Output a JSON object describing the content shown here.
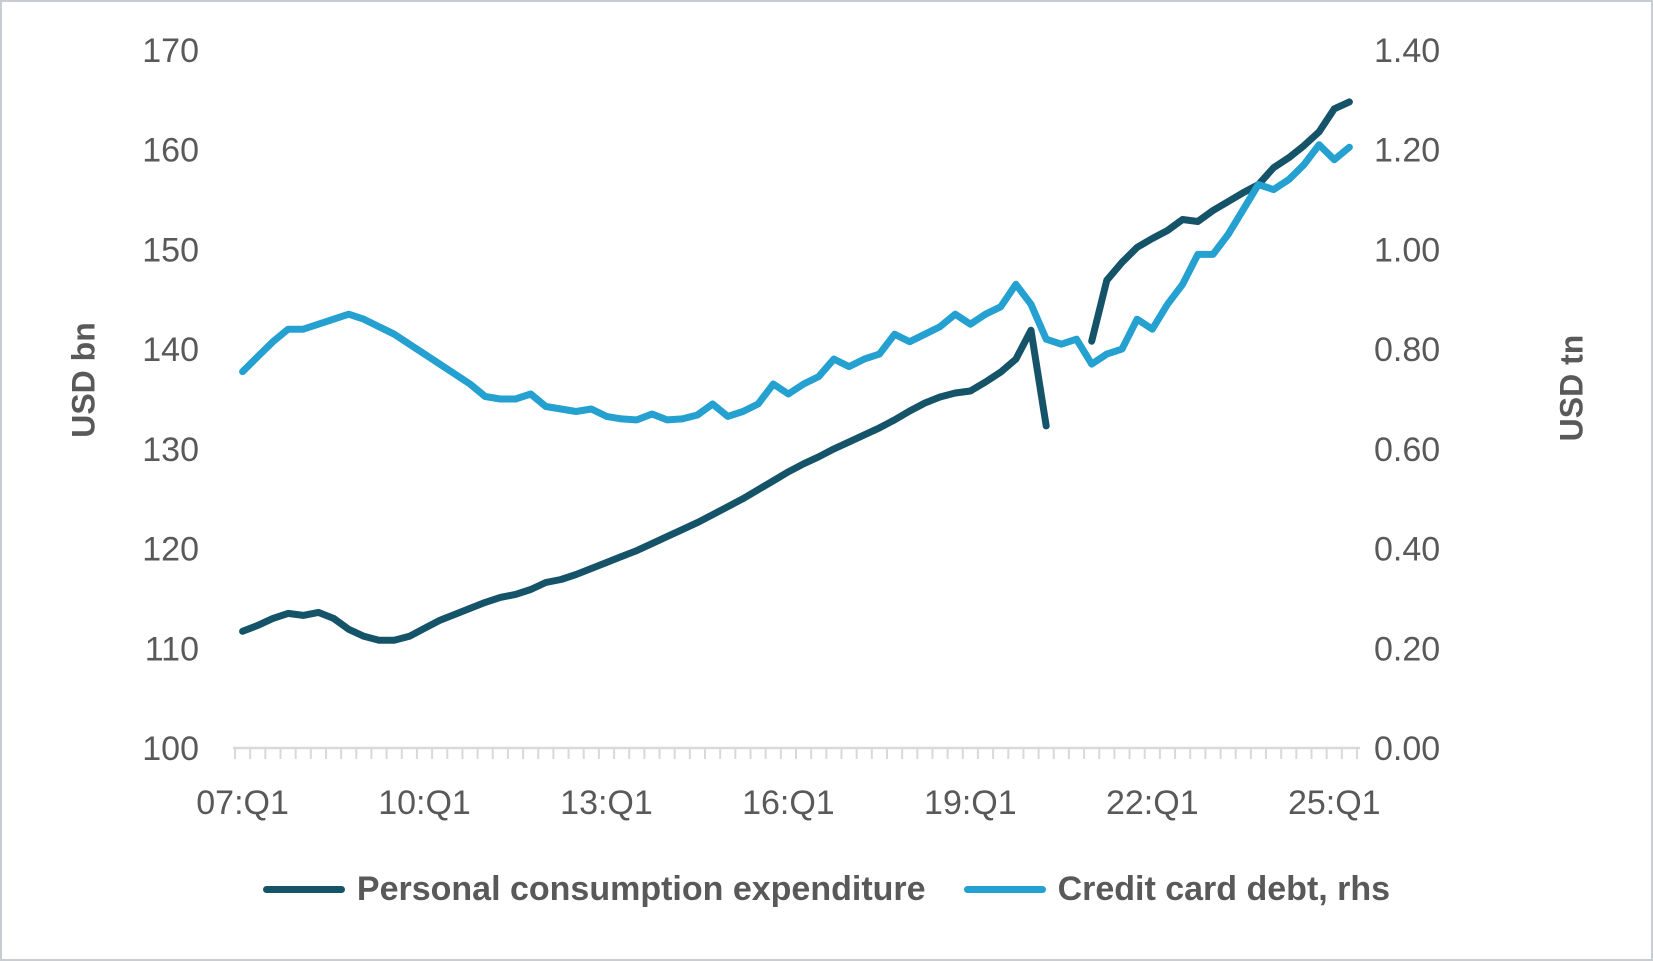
{
  "figure": {
    "background": "#ffffff",
    "border_color": "#c9cdd1",
    "text_color": "#595959",
    "axis_color": "#d9d9d9"
  },
  "chart_data": {
    "type": "line",
    "grid": false,
    "legend_position": "bottom",
    "x_start": "07:Q1",
    "x_end": "25:Q2",
    "x_frequency": "quarterly",
    "x_tick_labels": [
      "07:Q1",
      "10:Q1",
      "13:Q1",
      "16:Q1",
      "19:Q1",
      "22:Q1",
      "25:Q1"
    ],
    "x_tick_label_every_quarters": 12,
    "left_axis": {
      "label": "USD bn",
      "min": 100,
      "max": 170,
      "tick_step": 10,
      "tick_labels": [
        "100",
        "110",
        "120",
        "130",
        "140",
        "150",
        "160",
        "170"
      ]
    },
    "right_axis": {
      "label": "USD tn",
      "min": 0.0,
      "max": 1.4,
      "tick_step": 0.2,
      "tick_labels": [
        "0.00",
        "0.20",
        "0.40",
        "0.60",
        "0.80",
        "1.00",
        "1.20",
        "1.40"
      ]
    },
    "series": [
      {
        "name": "Personal consumption expenditure",
        "axis": "left",
        "color": "#155369",
        "values": [
          111.7,
          112.3,
          113.0,
          113.5,
          113.3,
          113.6,
          113.0,
          111.9,
          111.2,
          110.8,
          110.8,
          111.2,
          112.0,
          112.8,
          113.4,
          114.0,
          114.6,
          115.1,
          115.4,
          115.9,
          116.6,
          116.9,
          117.4,
          118.0,
          118.6,
          119.2,
          119.8,
          120.5,
          121.2,
          121.9,
          122.6,
          123.4,
          124.2,
          125.0,
          125.9,
          126.8,
          127.7,
          128.5,
          129.2,
          130.0,
          130.7,
          131.4,
          132.1,
          132.9,
          133.8,
          134.6,
          135.2,
          135.6,
          135.8,
          136.7,
          137.7,
          139.0,
          141.9,
          132.3,
          null,
          null,
          140.8,
          146.9,
          148.7,
          150.2,
          151.1,
          151.9,
          153.0,
          152.8,
          153.9,
          154.8,
          155.7,
          156.5,
          158.2,
          159.2,
          160.4,
          161.8,
          164.1,
          164.8
        ]
      },
      {
        "name": "Credit card debt, rhs",
        "axis": "right",
        "color": "#24a0d1",
        "values": [
          0.755,
          0.785,
          0.815,
          0.84,
          0.84,
          0.85,
          0.86,
          0.87,
          0.86,
          0.845,
          0.83,
          0.81,
          0.79,
          0.77,
          0.75,
          0.73,
          0.705,
          0.7,
          0.7,
          0.71,
          0.685,
          0.68,
          0.675,
          0.68,
          0.665,
          0.66,
          0.658,
          0.67,
          0.658,
          0.66,
          0.668,
          0.69,
          0.665,
          0.675,
          0.69,
          0.73,
          0.71,
          0.73,
          0.745,
          0.78,
          0.765,
          0.78,
          0.79,
          0.83,
          0.815,
          0.83,
          0.845,
          0.87,
          0.85,
          0.87,
          0.885,
          0.93,
          0.89,
          0.82,
          0.81,
          0.82,
          0.77,
          0.79,
          0.8,
          0.86,
          0.84,
          0.89,
          0.93,
          0.99,
          0.99,
          1.03,
          1.08,
          1.13,
          1.12,
          1.14,
          1.17,
          1.21,
          1.18,
          1.205
        ]
      }
    ]
  },
  "legend": {
    "items": [
      {
        "label": "Personal consumption expenditure"
      },
      {
        "label": "Credit card debt, rhs"
      }
    ]
  }
}
